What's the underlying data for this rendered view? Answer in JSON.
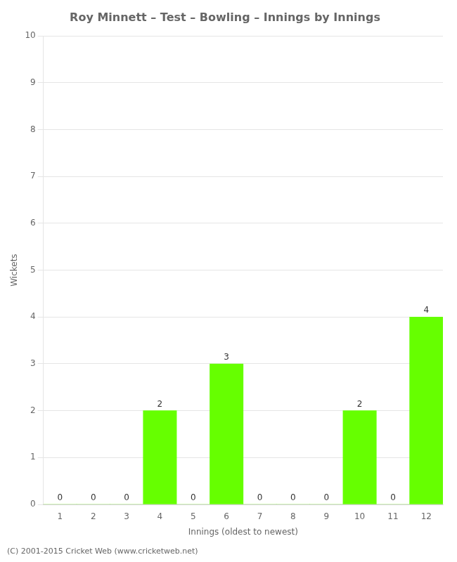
{
  "chart_data": {
    "type": "bar",
    "title": "Roy Minnett – Test – Bowling – Innings by Innings",
    "xlabel": "Innings (oldest to newest)",
    "ylabel": "Wickets",
    "categories": [
      1,
      2,
      3,
      4,
      5,
      6,
      7,
      8,
      9,
      10,
      11,
      12
    ],
    "values": [
      0,
      0,
      0,
      2,
      0,
      3,
      0,
      0,
      0,
      2,
      0,
      4
    ],
    "color": "#66ff00",
    "ylim": [
      0,
      10
    ],
    "yticks": [
      0,
      1,
      2,
      3,
      4,
      5,
      6,
      7,
      8,
      9,
      10
    ],
    "grid": true,
    "data_labels": true,
    "annotations": [
      "(C) 2001-2015 Cricket Web (www.cricketweb.net)"
    ]
  }
}
